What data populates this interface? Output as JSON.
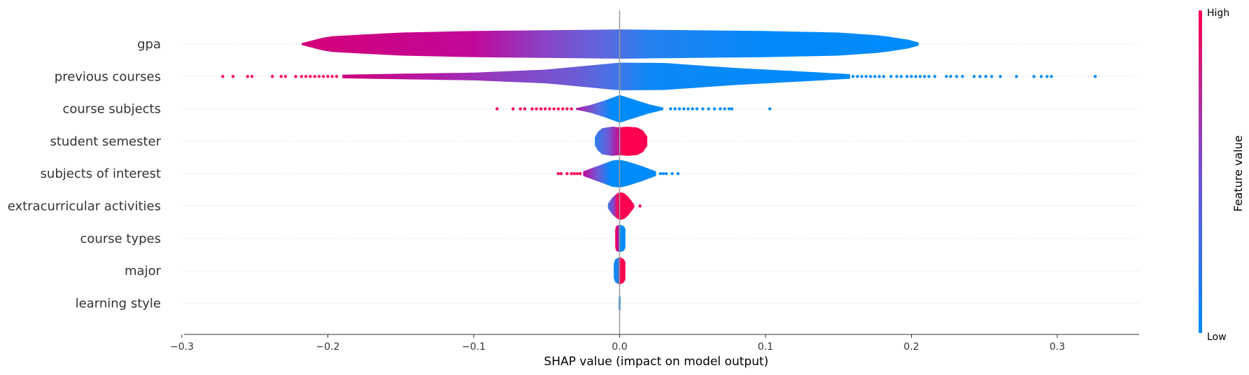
{
  "chart_data": {
    "type": "violin",
    "xlabel": "SHAP value (impact on model output)",
    "xlim": [
      -0.3,
      0.355
    ],
    "xticks": [
      {
        "value": -0.3,
        "label": "−0.3"
      },
      {
        "value": -0.2,
        "label": "−0.2"
      },
      {
        "value": -0.1,
        "label": "−0.1"
      },
      {
        "value": 0.0,
        "label": "0.0"
      },
      {
        "value": 0.1,
        "label": "0.1"
      },
      {
        "value": 0.2,
        "label": "0.2"
      },
      {
        "value": 0.3,
        "label": "0.3"
      }
    ],
    "colorbar": {
      "title": "Feature value",
      "high_label": "High",
      "low_label": "Low",
      "high_color": "#ff0051",
      "low_color": "#008bfb"
    },
    "features": [
      {
        "name": "gpa",
        "min": -0.218,
        "max": 0.205,
        "profile": [
          [
            -0.218,
            0.06
          ],
          [
            -0.2,
            0.5
          ],
          [
            -0.15,
            0.75
          ],
          [
            -0.1,
            0.85
          ],
          [
            -0.05,
            0.9
          ],
          [
            0.0,
            0.95
          ],
          [
            0.05,
            0.9
          ],
          [
            0.1,
            0.85
          ],
          [
            0.15,
            0.75
          ],
          [
            0.18,
            0.55
          ],
          [
            0.2,
            0.25
          ],
          [
            0.205,
            0.1
          ]
        ],
        "colors": [
          [
            -0.218,
            "#d40078"
          ],
          [
            -0.1,
            "#c1089a"
          ],
          [
            -0.05,
            "#8844c8"
          ],
          [
            -0.01,
            "#5e68de"
          ],
          [
            0.02,
            "#2581f0"
          ],
          [
            0.1,
            "#0489fa"
          ],
          [
            0.205,
            "#008bfb"
          ]
        ],
        "dots": []
      },
      {
        "name": "previous courses",
        "min": -0.19,
        "max": 0.158,
        "profile": [
          [
            -0.19,
            0.12
          ],
          [
            -0.15,
            0.18
          ],
          [
            -0.1,
            0.25
          ],
          [
            -0.05,
            0.45
          ],
          [
            0.0,
            0.9
          ],
          [
            0.03,
            0.88
          ],
          [
            0.08,
            0.55
          ],
          [
            0.12,
            0.35
          ],
          [
            0.158,
            0.15
          ]
        ],
        "colors": [
          [
            -0.19,
            "#cd007f"
          ],
          [
            -0.13,
            "#b31aa3"
          ],
          [
            -0.08,
            "#8e40c3"
          ],
          [
            -0.03,
            "#6d5bd5"
          ],
          [
            0.0,
            "#3f78ea"
          ],
          [
            0.02,
            "#0c88f7"
          ],
          [
            0.158,
            "#008bfb"
          ]
        ],
        "dots": [
          {
            "x": -0.272,
            "c": "#ff0051"
          },
          {
            "x": -0.265,
            "c": "#ff0051"
          },
          {
            "x": -0.255,
            "c": "#ff0051"
          },
          {
            "x": -0.252,
            "c": "#ff0051"
          },
          {
            "x": -0.238,
            "c": "#ff0051"
          },
          {
            "x": -0.232,
            "c": "#ff0051"
          },
          {
            "x": -0.229,
            "c": "#ff0051"
          },
          {
            "x": -0.222,
            "c": "#ff0051"
          },
          {
            "x": -0.218,
            "c": "#ff0051"
          },
          {
            "x": -0.215,
            "c": "#ff0051"
          },
          {
            "x": -0.212,
            "c": "#ff0051"
          },
          {
            "x": -0.209,
            "c": "#ff0051"
          },
          {
            "x": -0.206,
            "c": "#ff0051"
          },
          {
            "x": -0.203,
            "c": "#ff0051"
          },
          {
            "x": -0.2,
            "c": "#ff0051"
          },
          {
            "x": -0.197,
            "c": "#ff0051"
          },
          {
            "x": -0.194,
            "c": "#ff0051"
          },
          {
            "x": 0.16,
            "c": "#008bfb"
          },
          {
            "x": 0.163,
            "c": "#008bfb"
          },
          {
            "x": 0.166,
            "c": "#008bfb"
          },
          {
            "x": 0.169,
            "c": "#008bfb"
          },
          {
            "x": 0.172,
            "c": "#008bfb"
          },
          {
            "x": 0.175,
            "c": "#008bfb"
          },
          {
            "x": 0.178,
            "c": "#008bfb"
          },
          {
            "x": 0.181,
            "c": "#008bfb"
          },
          {
            "x": 0.186,
            "c": "#008bfb"
          },
          {
            "x": 0.19,
            "c": "#008bfb"
          },
          {
            "x": 0.193,
            "c": "#008bfb"
          },
          {
            "x": 0.197,
            "c": "#008bfb"
          },
          {
            "x": 0.2,
            "c": "#008bfb"
          },
          {
            "x": 0.203,
            "c": "#008bfb"
          },
          {
            "x": 0.206,
            "c": "#008bfb"
          },
          {
            "x": 0.209,
            "c": "#008bfb"
          },
          {
            "x": 0.212,
            "c": "#008bfb"
          },
          {
            "x": 0.216,
            "c": "#008bfb"
          },
          {
            "x": 0.224,
            "c": "#008bfb"
          },
          {
            "x": 0.227,
            "c": "#008bfb"
          },
          {
            "x": 0.231,
            "c": "#008bfb"
          },
          {
            "x": 0.235,
            "c": "#008bfb"
          },
          {
            "x": 0.243,
            "c": "#008bfb"
          },
          {
            "x": 0.247,
            "c": "#008bfb"
          },
          {
            "x": 0.251,
            "c": "#008bfb"
          },
          {
            "x": 0.255,
            "c": "#008bfb"
          },
          {
            "x": 0.261,
            "c": "#008bfb"
          },
          {
            "x": 0.272,
            "c": "#008bfb"
          },
          {
            "x": 0.284,
            "c": "#008bfb"
          },
          {
            "x": 0.289,
            "c": "#008bfb"
          },
          {
            "x": 0.293,
            "c": "#008bfb"
          },
          {
            "x": 0.296,
            "c": "#008bfb"
          },
          {
            "x": 0.326,
            "c": "#008bfb"
          }
        ]
      },
      {
        "name": "course subjects",
        "min": -0.03,
        "max": 0.03,
        "profile": [
          [
            -0.03,
            0.05
          ],
          [
            -0.02,
            0.25
          ],
          [
            -0.01,
            0.55
          ],
          [
            0.0,
            0.9
          ],
          [
            0.01,
            0.6
          ],
          [
            0.02,
            0.3
          ],
          [
            0.03,
            0.08
          ]
        ],
        "colors": [
          [
            -0.03,
            "#b31aa3"
          ],
          [
            -0.015,
            "#5b6ce0"
          ],
          [
            -0.005,
            "#008bfb"
          ],
          [
            0.03,
            "#008bfb"
          ]
        ],
        "dots": [
          {
            "x": -0.084,
            "c": "#ff0051"
          },
          {
            "x": -0.073,
            "c": "#ff0051"
          },
          {
            "x": -0.068,
            "c": "#ff0051"
          },
          {
            "x": -0.065,
            "c": "#ff0051"
          },
          {
            "x": -0.06,
            "c": "#ff0051"
          },
          {
            "x": -0.057,
            "c": "#ff0051"
          },
          {
            "x": -0.054,
            "c": "#ff0051"
          },
          {
            "x": -0.051,
            "c": "#ff0051"
          },
          {
            "x": -0.048,
            "c": "#ff0051"
          },
          {
            "x": -0.045,
            "c": "#ff0051"
          },
          {
            "x": -0.042,
            "c": "#ff0051"
          },
          {
            "x": -0.039,
            "c": "#ff0051"
          },
          {
            "x": -0.036,
            "c": "#ff0051"
          },
          {
            "x": -0.033,
            "c": "#ff0051"
          },
          {
            "x": 0.035,
            "c": "#008bfb"
          },
          {
            "x": 0.038,
            "c": "#008bfb"
          },
          {
            "x": 0.041,
            "c": "#008bfb"
          },
          {
            "x": 0.044,
            "c": "#008bfb"
          },
          {
            "x": 0.047,
            "c": "#008bfb"
          },
          {
            "x": 0.05,
            "c": "#008bfb"
          },
          {
            "x": 0.053,
            "c": "#008bfb"
          },
          {
            "x": 0.057,
            "c": "#008bfb"
          },
          {
            "x": 0.061,
            "c": "#008bfb"
          },
          {
            "x": 0.065,
            "c": "#008bfb"
          },
          {
            "x": 0.069,
            "c": "#008bfb"
          },
          {
            "x": 0.072,
            "c": "#008bfb"
          },
          {
            "x": 0.075,
            "c": "#008bfb"
          },
          {
            "x": 0.077,
            "c": "#008bfb"
          },
          {
            "x": 0.103,
            "c": "#008bfb"
          }
        ]
      },
      {
        "name": "student semester",
        "min": -0.017,
        "max": 0.019,
        "profile": [
          [
            -0.017,
            0.25
          ],
          [
            -0.015,
            0.6
          ],
          [
            -0.012,
            0.85
          ],
          [
            -0.005,
            0.95
          ],
          [
            0.0,
            0.9
          ],
          [
            0.005,
            0.95
          ],
          [
            0.012,
            0.9
          ],
          [
            0.016,
            0.7
          ],
          [
            0.019,
            0.3
          ]
        ],
        "colors": [
          [
            -0.017,
            "#2a80ef"
          ],
          [
            -0.008,
            "#6c5cd6"
          ],
          [
            -0.002,
            "#b31aa3"
          ],
          [
            0.002,
            "#ff0051"
          ],
          [
            0.019,
            "#ff0051"
          ]
        ],
        "dots": []
      },
      {
        "name": "subjects of interest",
        "min": -0.025,
        "max": 0.025,
        "profile": [
          [
            -0.025,
            0.15
          ],
          [
            -0.015,
            0.5
          ],
          [
            -0.005,
            0.85
          ],
          [
            0.0,
            0.9
          ],
          [
            0.005,
            0.8
          ],
          [
            0.015,
            0.5
          ],
          [
            0.025,
            0.15
          ]
        ],
        "colors": [
          [
            -0.025,
            "#c1089a"
          ],
          [
            -0.015,
            "#6c5cd6"
          ],
          [
            -0.006,
            "#008bfb"
          ],
          [
            0.025,
            "#008bfb"
          ]
        ],
        "dots": [
          {
            "x": -0.042,
            "c": "#ff0051"
          },
          {
            "x": -0.04,
            "c": "#ff0051"
          },
          {
            "x": -0.036,
            "c": "#ff0051"
          },
          {
            "x": -0.033,
            "c": "#ff0051"
          },
          {
            "x": -0.031,
            "c": "#ff0051"
          },
          {
            "x": -0.029,
            "c": "#ff0051"
          },
          {
            "x": -0.027,
            "c": "#ff0051"
          },
          {
            "x": 0.028,
            "c": "#008bfb"
          },
          {
            "x": 0.03,
            "c": "#008bfb"
          },
          {
            "x": 0.032,
            "c": "#008bfb"
          },
          {
            "x": 0.036,
            "c": "#008bfb"
          },
          {
            "x": 0.04,
            "c": "#008bfb"
          }
        ]
      },
      {
        "name": "extracurricular activities",
        "min": -0.008,
        "max": 0.01,
        "profile": [
          [
            -0.008,
            0.15
          ],
          [
            -0.005,
            0.55
          ],
          [
            -0.002,
            0.8
          ],
          [
            0.0,
            0.9
          ],
          [
            0.003,
            0.85
          ],
          [
            0.006,
            0.6
          ],
          [
            0.008,
            0.35
          ],
          [
            0.01,
            0.1
          ]
        ],
        "colors": [
          [
            -0.008,
            "#3f78ea"
          ],
          [
            -0.004,
            "#8e40c3"
          ],
          [
            -0.001,
            "#ff0051"
          ],
          [
            0.01,
            "#ff0051"
          ]
        ],
        "dots": [
          {
            "x": 0.014,
            "c": "#ff0051"
          }
        ]
      },
      {
        "name": "course types",
        "min": -0.003,
        "max": 0.004,
        "profile": [
          [
            -0.003,
            0.55
          ],
          [
            -0.0025,
            0.8
          ],
          [
            0.0,
            0.9
          ],
          [
            0.003,
            0.8
          ],
          [
            0.004,
            0.6
          ]
        ],
        "colors": [
          [
            -0.003,
            "#ff0051"
          ],
          [
            -0.001,
            "#c1089a"
          ],
          [
            0.0,
            "#008bfb"
          ],
          [
            0.004,
            "#008bfb"
          ]
        ],
        "dots": []
      },
      {
        "name": "major",
        "min": -0.004,
        "max": 0.004,
        "profile": [
          [
            -0.004,
            0.45
          ],
          [
            -0.003,
            0.75
          ],
          [
            0.0,
            0.9
          ],
          [
            0.003,
            0.75
          ],
          [
            0.004,
            0.55
          ]
        ],
        "colors": [
          [
            -0.004,
            "#008bfb"
          ],
          [
            -0.001,
            "#2a80ef"
          ],
          [
            0.0,
            "#ff0051"
          ],
          [
            0.004,
            "#ff0051"
          ]
        ],
        "dots": []
      },
      {
        "name": "learning style",
        "min": -0.0006,
        "max": 0.0006,
        "profile": [
          [
            -0.0006,
            0.4
          ],
          [
            0.0,
            0.6
          ],
          [
            0.0006,
            0.4
          ]
        ],
        "colors": [
          [
            -0.0006,
            "#008bfb"
          ],
          [
            0.0006,
            "#008bfb"
          ]
        ],
        "dots": []
      }
    ]
  }
}
